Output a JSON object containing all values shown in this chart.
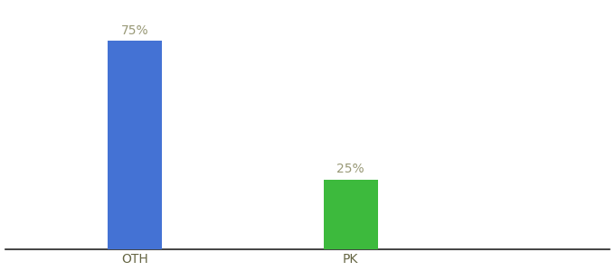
{
  "categories": [
    "OTH",
    "PK"
  ],
  "values": [
    75,
    25
  ],
  "bar_colors": [
    "#4472d4",
    "#3dba3d"
  ],
  "label_texts": [
    "75%",
    "25%"
  ],
  "label_color": "#999977",
  "background_color": "#ffffff",
  "bar_width": 0.25,
  "ylim": [
    0,
    88
  ],
  "xlabel_fontsize": 10,
  "label_fontsize": 10,
  "x_positions": [
    1,
    2
  ],
  "xlim": [
    0.4,
    3.2
  ]
}
